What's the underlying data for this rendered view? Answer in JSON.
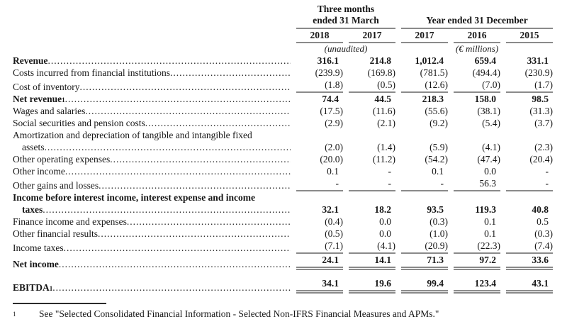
{
  "table": {
    "header": {
      "group1_line1": "Three months",
      "group1_line2": "ended 31 March",
      "group2": "Year ended 31 December",
      "years": [
        "2018",
        "2017",
        "2017",
        "2016",
        "2015"
      ],
      "note_unaudited": "(unaudited)",
      "note_currency": "(€ millions)"
    },
    "rows": [
      {
        "label": "Revenue",
        "bold": true,
        "values": [
          "316.1",
          "214.8",
          "1,012.4",
          "659.4",
          "331.1"
        ]
      },
      {
        "label": "Costs incurred from financial institutions",
        "values": [
          "(239.9)",
          "(169.8)",
          "(781.5)",
          "(494.4)",
          "(230.9)"
        ]
      },
      {
        "label": "Cost of inventory",
        "values": [
          "(1.8)",
          "(0.5)",
          "(12.6)",
          "(7.0)",
          "(1.7)"
        ],
        "rule_after": "single"
      },
      {
        "label": "Net revenue",
        "sup": "1",
        "bold": true,
        "values": [
          "74.4",
          "44.5",
          "218.3",
          "158.0",
          "98.5"
        ]
      },
      {
        "label": "Wages and salaries",
        "values": [
          "(17.5)",
          "(11.6)",
          "(55.6)",
          "(38.1)",
          "(31.3)"
        ]
      },
      {
        "label": "Social securities and pension costs",
        "values": [
          "(2.9)",
          "(2.1)",
          "(9.2)",
          "(5.4)",
          "(3.7)"
        ]
      },
      {
        "label": "Amortization and depreciation of tangible and intangible fixed",
        "label2": "assets",
        "values": [
          "(2.0)",
          "(1.4)",
          "(5.9)",
          "(4.1)",
          "(2.3)"
        ]
      },
      {
        "label": "Other operating expenses",
        "values": [
          "(20.0)",
          "(11.2)",
          "(54.2)",
          "(47.4)",
          "(20.4)"
        ]
      },
      {
        "label": "Other income",
        "values": [
          "0.1",
          "-",
          "0.1",
          "0.0",
          "-"
        ]
      },
      {
        "label": "Other gains and losses",
        "values": [
          "-",
          "-",
          "-",
          "56.3",
          "-"
        ],
        "rule_after": "single"
      },
      {
        "label": "Income before interest income, interest expense and income",
        "label2": "taxes",
        "bold": true,
        "values": [
          "32.1",
          "18.2",
          "93.5",
          "119.3",
          "40.8"
        ]
      },
      {
        "label": "Finance income and expenses",
        "values": [
          "(0.4)",
          "0.0",
          "(0.3)",
          "0.1",
          "0.5"
        ]
      },
      {
        "label": "Other financial results",
        "values": [
          "(0.5)",
          "0.0",
          "(1.0)",
          "0.1",
          "(0.3)"
        ]
      },
      {
        "label": "Income taxes",
        "values": [
          "(7.1)",
          "(4.1)",
          "(20.9)",
          "(22.3)",
          "(7.4)"
        ],
        "rule_after": "single"
      },
      {
        "label": "Net income",
        "bold": true,
        "values": [
          "24.1",
          "14.1",
          "71.3",
          "97.2",
          "33.6"
        ],
        "rule_after": "double"
      },
      {
        "label": "EBITDA",
        "sup": "1",
        "bold": true,
        "values": [
          "34.1",
          "19.6",
          "99.4",
          "123.4",
          "43.1"
        ],
        "rule_after": "double",
        "spacer_before": true
      }
    ]
  },
  "footnote": {
    "marker": "1",
    "text": "See \"Selected Consolidated Financial Information - Selected Non-IFRS Financial Measures and APMs.\""
  },
  "colors": {
    "text": "#161616",
    "rule_gray": "#8a8a8a",
    "footnote_rule": "#2b2b2b",
    "background": "#ffffff"
  }
}
